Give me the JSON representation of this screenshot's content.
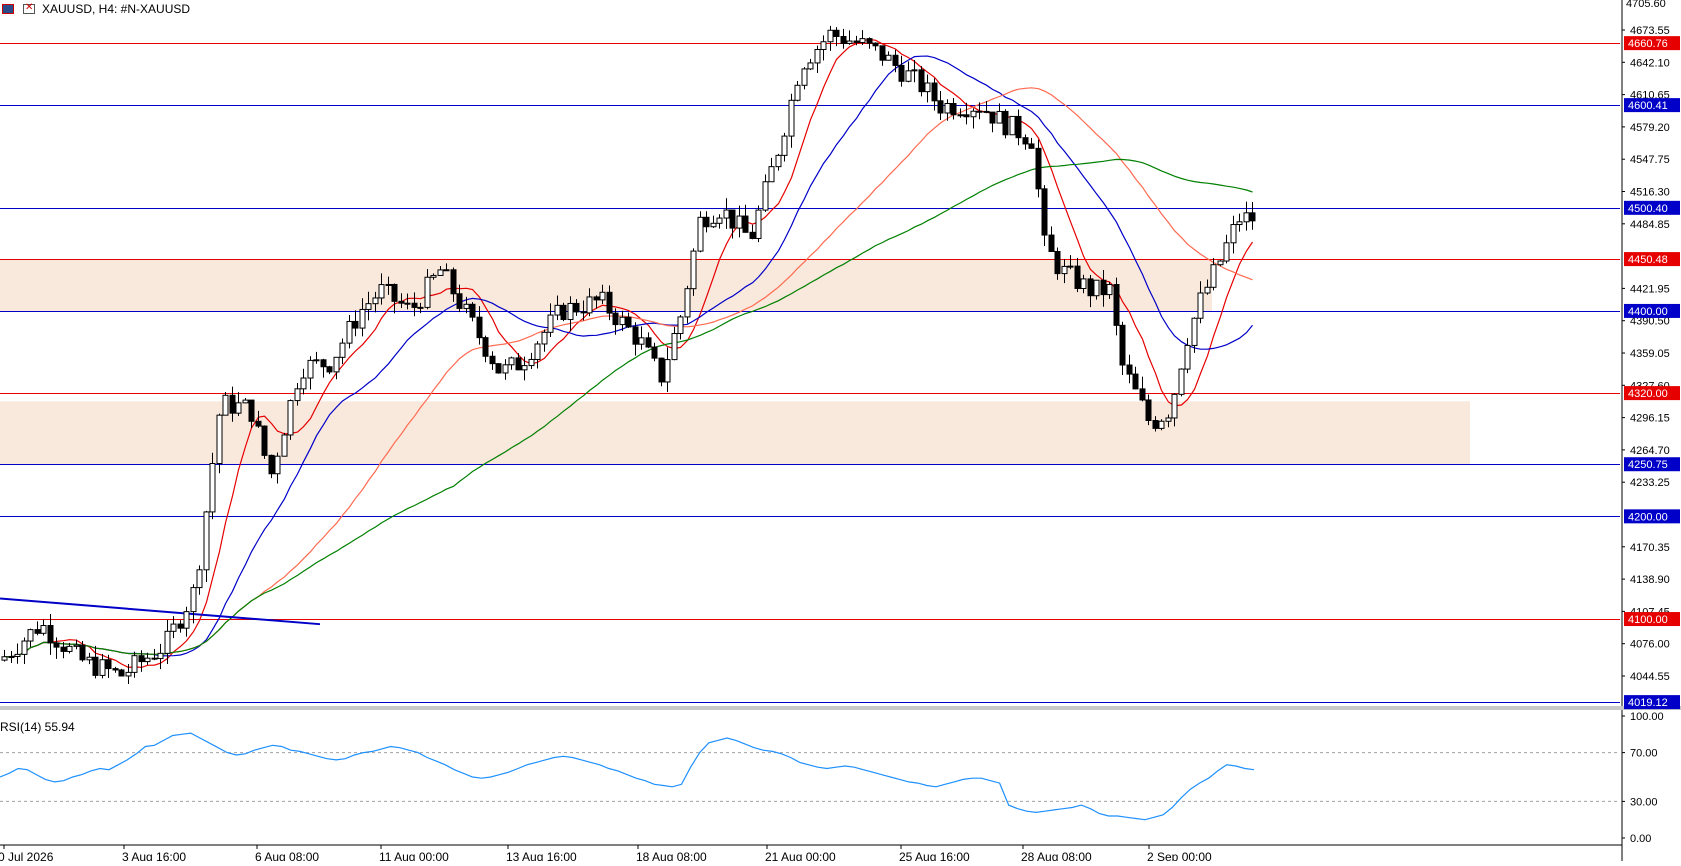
{
  "header": {
    "symbol_line": "XAUUSD, H4:  #N-XAUUSD"
  },
  "colors": {
    "red_line": "#e60000",
    "blue_line": "#0000c8",
    "green_ma": "#008000",
    "salmon_ma": "#ff6a50",
    "zone_fill": "#f9e8dc",
    "rsi_line": "#1e90ff",
    "label_blue_bg": "#0000c8",
    "label_red_bg": "#e60000"
  },
  "price_axis": {
    "top_partial": "4705.60",
    "ticks": [
      "4673.55",
      "4642.10",
      "4610.65",
      "4579.20",
      "4547.75",
      "4516.30",
      "4484.85",
      "4421.95",
      "4390.50",
      "4359.05",
      "4327.60",
      "4296.15",
      "4264.70",
      "4233.25",
      "4170.35",
      "4138.90",
      "4107.45",
      "4076.00",
      "4044.55"
    ]
  },
  "levels": [
    {
      "price": 4660.76,
      "label": "4660.76",
      "color": "red"
    },
    {
      "price": 4600.41,
      "label": "4600.41",
      "color": "blue"
    },
    {
      "price": 4500.4,
      "label": "4500.40",
      "color": "blue"
    },
    {
      "price": 4450.48,
      "label": "4450.48",
      "color": "red"
    },
    {
      "price": 4400.0,
      "label": "4400.00",
      "color": "blue"
    },
    {
      "price": 4320.0,
      "label": "4320.00",
      "color": "red"
    },
    {
      "price": 4250.75,
      "label": "4250.75",
      "color": "blue"
    },
    {
      "price": 4200.0,
      "label": "4200.00",
      "color": "blue"
    },
    {
      "price": 4100.0,
      "label": "4100.00",
      "color": "red"
    },
    {
      "price": 4019.12,
      "label": "4019.12",
      "color": "blue"
    }
  ],
  "zones": [
    {
      "top": 4450.48,
      "bottom": 4400.0,
      "extends_to": "1212"
    },
    {
      "top": 4312.0,
      "bottom": 4250.75,
      "extends_to": "1470"
    }
  ],
  "time_axis": [
    "0 Jul 2026",
    "3 Aug 16:00",
    "6 Aug 08:00",
    "11 Aug 00:00",
    "13 Aug 16:00",
    "18 Aug 08:00",
    "21 Aug 00:00",
    "25 Aug 16:00",
    "28 Aug 08:00",
    "2 Sep 00:00"
  ],
  "rsi": {
    "label": "RSI(14) 55.94",
    "ticks": [
      "100.00",
      "70.00",
      "30.00",
      "0.00"
    ],
    "values": [
      50,
      53,
      57,
      56,
      52,
      48,
      46,
      47,
      50,
      52,
      55,
      57,
      56,
      60,
      64,
      69,
      75,
      76,
      80,
      84,
      85,
      86,
      82,
      78,
      74,
      70,
      68,
      69,
      72,
      74,
      76,
      75,
      72,
      71,
      69,
      67,
      65,
      64,
      65,
      68,
      70,
      71,
      73,
      75,
      74,
      72,
      70,
      66,
      63,
      60,
      56,
      53,
      50,
      49,
      50,
      52,
      54,
      57,
      60,
      62,
      64,
      66,
      67,
      66,
      64,
      62,
      60,
      57,
      55,
      52,
      49,
      47,
      44,
      43,
      42,
      44,
      58,
      70,
      78,
      80,
      82,
      80,
      77,
      74,
      72,
      71,
      69,
      66,
      62,
      60,
      58,
      57,
      58,
      59,
      58,
      56,
      54,
      52,
      50,
      48,
      46,
      45,
      43,
      42,
      44,
      46,
      48,
      49,
      49,
      47,
      45,
      27,
      24,
      22,
      21,
      22,
      23,
      24,
      25,
      27,
      24,
      20,
      18,
      18,
      17,
      16,
      15,
      17,
      19,
      25,
      33,
      40,
      45,
      49,
      55,
      60,
      59,
      57,
      56
    ]
  }
}
